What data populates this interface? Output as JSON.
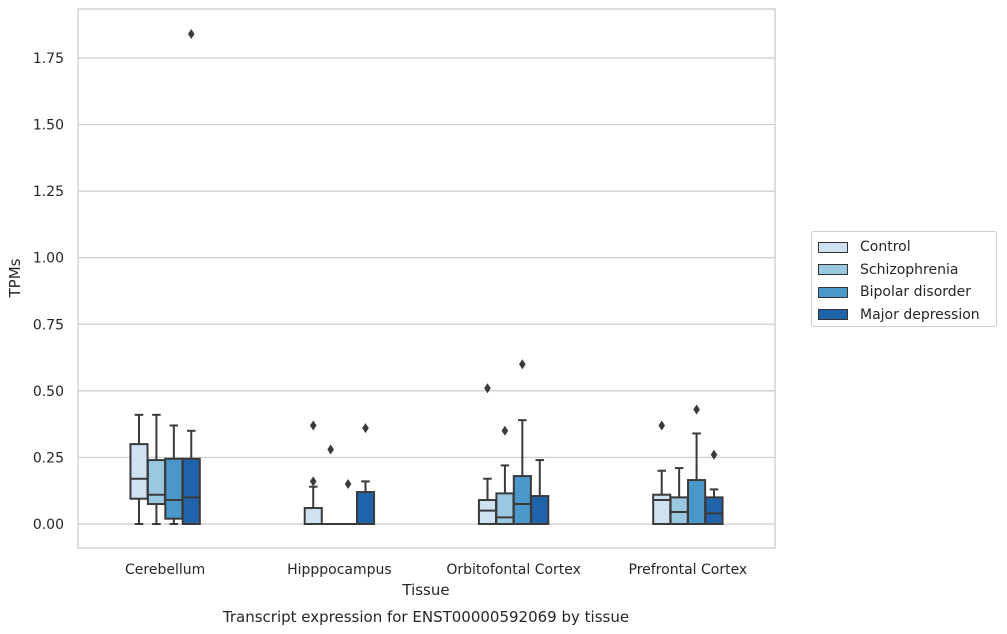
{
  "chart_data": {
    "type": "box",
    "title": "",
    "caption": "Transcript expression for ENST00000592069 by tissue",
    "xlabel": "Tissue",
    "ylabel": "TPMs",
    "ylim": [
      -0.09,
      1.94
    ],
    "yticks": [
      "0.00",
      "0.25",
      "0.50",
      "0.75",
      "1.00",
      "1.25",
      "1.50",
      "1.75"
    ],
    "ytick_values": [
      0,
      0.25,
      0.5,
      0.75,
      1.0,
      1.25,
      1.5,
      1.75
    ],
    "grid": true,
    "legend_position": "right",
    "categories": [
      "Cerebellum",
      "Hipppocampus",
      "Orbitofontal Cortex",
      "Prefrontal Cortex"
    ],
    "series": [
      {
        "name": "Control",
        "color": "#d0e1f2",
        "boxes": [
          {
            "whislo": 0.0,
            "q1": 0.095,
            "med": 0.17,
            "q3": 0.3,
            "whishi": 0.41,
            "fliers": []
          },
          {
            "whislo": 0.0,
            "q1": 0.0,
            "med": 0.0,
            "q3": 0.06,
            "whishi": 0.14,
            "fliers": [
              0.16,
              0.37
            ]
          },
          {
            "whislo": 0.0,
            "q1": 0.0,
            "med": 0.05,
            "q3": 0.09,
            "whishi": 0.17,
            "fliers": [
              0.51
            ]
          },
          {
            "whislo": 0.0,
            "q1": 0.0,
            "med": 0.09,
            "q3": 0.11,
            "whishi": 0.2,
            "fliers": [
              0.37
            ]
          }
        ]
      },
      {
        "name": "Schizophrenia",
        "color": "#9ac8e0",
        "boxes": [
          {
            "whislo": 0.0,
            "q1": 0.075,
            "med": 0.11,
            "q3": 0.24,
            "whishi": 0.41,
            "fliers": []
          },
          {
            "whislo": 0.0,
            "q1": 0.0,
            "med": 0.0,
            "q3": 0.0,
            "whishi": 0.0,
            "fliers": [
              0.28
            ]
          },
          {
            "whislo": 0.0,
            "q1": 0.0,
            "med": 0.025,
            "q3": 0.115,
            "whishi": 0.22,
            "fliers": [
              0.35
            ]
          },
          {
            "whislo": 0.0,
            "q1": 0.0,
            "med": 0.045,
            "q3": 0.1,
            "whishi": 0.21,
            "fliers": []
          }
        ]
      },
      {
        "name": "Bipolar disorder",
        "color": "#4a98c9",
        "boxes": [
          {
            "whislo": 0.0,
            "q1": 0.02,
            "med": 0.09,
            "q3": 0.245,
            "whishi": 0.37,
            "fliers": []
          },
          {
            "whislo": 0.0,
            "q1": 0.0,
            "med": 0.0,
            "q3": 0.0,
            "whishi": 0.0,
            "fliers": [
              0.15
            ]
          },
          {
            "whislo": 0.0,
            "q1": 0.0,
            "med": 0.075,
            "q3": 0.18,
            "whishi": 0.39,
            "fliers": [
              0.6
            ]
          },
          {
            "whislo": 0.0,
            "q1": 0.0,
            "med": 0.0,
            "q3": 0.165,
            "whishi": 0.34,
            "fliers": [
              0.43
            ]
          }
        ]
      },
      {
        "name": "Major depression",
        "color": "#2163aa",
        "boxes": [
          {
            "whislo": 0.0,
            "q1": 0.0,
            "med": 0.1,
            "q3": 0.245,
            "whishi": 0.35,
            "fliers": [
              1.84
            ]
          },
          {
            "whislo": 0.0,
            "q1": 0.0,
            "med": 0.0,
            "q3": 0.12,
            "whishi": 0.16,
            "fliers": [
              0.36
            ]
          },
          {
            "whislo": 0.0,
            "q1": 0.0,
            "med": 0.0,
            "q3": 0.105,
            "whishi": 0.24,
            "fliers": []
          },
          {
            "whislo": 0.0,
            "q1": 0.0,
            "med": 0.04,
            "q3": 0.1,
            "whishi": 0.13,
            "fliers": [
              0.26
            ]
          }
        ]
      }
    ]
  }
}
